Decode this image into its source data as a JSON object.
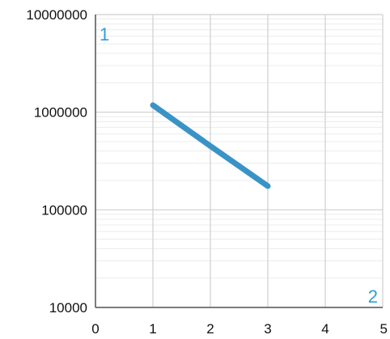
{
  "chart_data": {
    "type": "line",
    "title": "",
    "xlabel": "",
    "ylabel": "",
    "xlim": [
      0,
      5
    ],
    "ylim": [
      10000,
      10000000
    ],
    "y_scale": "log",
    "grid": true,
    "x_ticks": [
      0,
      1,
      2,
      3,
      4,
      5
    ],
    "x_tick_labels": [
      "0",
      "1",
      "2",
      "3",
      "4",
      "5"
    ],
    "y_ticks": [
      10000,
      100000,
      1000000,
      10000000
    ],
    "y_tick_labels": [
      "10000",
      "100000",
      "1000000",
      "10000000"
    ],
    "series": [
      {
        "color": "#3a93c6",
        "points": [
          {
            "x": 1,
            "y": 1180000
          },
          {
            "x": 2,
            "y": 450000
          },
          {
            "x": 3,
            "y": 175000
          }
        ]
      }
    ],
    "annotations": [
      {
        "text": "1",
        "position": "top-left"
      },
      {
        "text": "2",
        "position": "bottom-right"
      }
    ],
    "colors": {
      "line": "#3a93c6",
      "annotation": "#2e9fd6",
      "major_grid": "#cfcfcf",
      "minor_grid": "#ececec",
      "axis": "#555555"
    }
  }
}
